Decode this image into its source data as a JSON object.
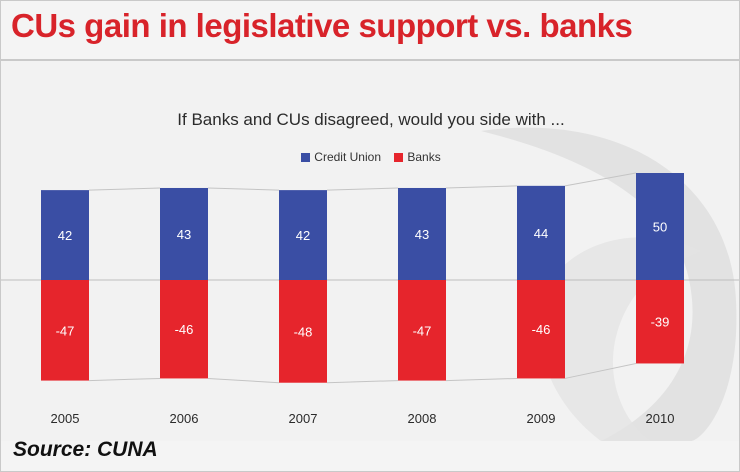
{
  "headline": "CUs gain in legislative support vs. banks",
  "source": "Source: CUNA",
  "colors": {
    "credit_union": "#3a4ea4",
    "banks": "#e6252c",
    "headline": "#d8232a"
  },
  "chart_data": {
    "type": "bar",
    "subtitle": "If Banks and CUs disagreed, would you side with ...",
    "categories": [
      "2005",
      "2006",
      "2007",
      "2008",
      "2009",
      "2010"
    ],
    "series": [
      {
        "name": "Credit Union",
        "values": [
          42,
          43,
          42,
          43,
          44,
          50
        ]
      },
      {
        "name": "Banks",
        "values": [
          -47,
          -46,
          -48,
          -47,
          -46,
          -39
        ]
      }
    ],
    "stacked": true,
    "legend": "top-center",
    "grid": false
  }
}
